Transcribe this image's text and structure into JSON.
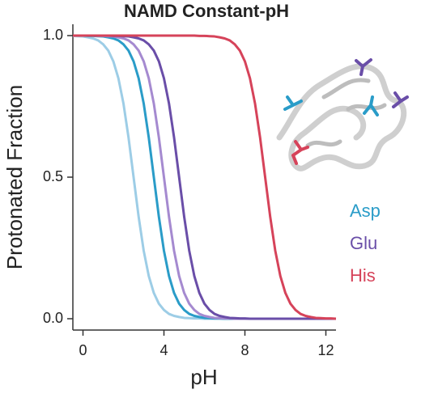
{
  "chart_data": {
    "type": "line",
    "title": "NAMD Constant-pH",
    "x_label": "pH",
    "y_label": "Protonated Fraction",
    "xlim": [
      -0.5,
      12.5
    ],
    "ylim": [
      -0.04,
      1.04
    ],
    "xticks": [
      0,
      4,
      8,
      12
    ],
    "yticks": [
      {
        "value": 0,
        "label": "0.0"
      },
      {
        "value": 0.5,
        "label": "0.5"
      },
      {
        "value": 1,
        "label": "1.0"
      }
    ],
    "x": [
      -0.5,
      -0.25,
      0,
      0.25,
      0.5,
      0.75,
      1,
      1.25,
      1.5,
      1.75,
      2,
      2.25,
      2.5,
      2.75,
      3,
      3.25,
      3.5,
      3.75,
      4,
      4.25,
      4.5,
      4.75,
      5,
      5.25,
      5.5,
      5.75,
      6,
      6.25,
      6.5,
      6.75,
      7,
      7.25,
      7.5,
      7.75,
      8,
      8.25,
      8.5,
      8.75,
      9,
      9.25,
      9.5,
      9.75,
      10,
      10.25,
      10.5,
      10.75,
      11,
      11.25,
      11.5,
      11.75,
      12,
      12.25,
      12.5
    ],
    "series": [
      {
        "color": "#9dcde6",
        "values": [
          0.999,
          0.998,
          0.997,
          0.994,
          0.99,
          0.983,
          0.969,
          0.947,
          0.909,
          0.849,
          0.76,
          0.64,
          0.5,
          0.36,
          0.24,
          0.151,
          0.091,
          0.053,
          0.031,
          0.017,
          0.01,
          0.006,
          0.003,
          0.002,
          0.001,
          0.001,
          0,
          0,
          0,
          0,
          0,
          0,
          0,
          0,
          0,
          0,
          0,
          0,
          0,
          0,
          0,
          0,
          0,
          0,
          0,
          0,
          0,
          0,
          0,
          0,
          0,
          0,
          0
        ]
      },
      {
        "color": "#2a9cc8",
        "values": [
          1,
          1,
          1,
          0.999,
          0.999,
          0.998,
          0.997,
          0.994,
          0.99,
          0.983,
          0.969,
          0.947,
          0.909,
          0.849,
          0.76,
          0.64,
          0.5,
          0.36,
          0.24,
          0.151,
          0.091,
          0.053,
          0.031,
          0.017,
          0.01,
          0.006,
          0.003,
          0.002,
          0.001,
          0.001,
          0,
          0,
          0,
          0,
          0,
          0,
          0,
          0,
          0,
          0,
          0,
          0,
          0,
          0,
          0,
          0,
          0,
          0,
          0,
          0,
          0,
          0,
          0
        ]
      },
      {
        "color": "#a58ad0",
        "values": [
          1,
          1,
          1,
          1,
          1,
          0.999,
          0.999,
          0.998,
          0.997,
          0.994,
          0.99,
          0.983,
          0.969,
          0.947,
          0.909,
          0.849,
          0.76,
          0.64,
          0.5,
          0.36,
          0.24,
          0.151,
          0.091,
          0.053,
          0.031,
          0.017,
          0.01,
          0.006,
          0.003,
          0.002,
          0.001,
          0.001,
          0,
          0,
          0,
          0,
          0,
          0,
          0,
          0,
          0,
          0,
          0,
          0,
          0,
          0,
          0,
          0,
          0,
          0,
          0,
          0,
          0
        ]
      },
      {
        "color": "#6a4ea8",
        "values": [
          1,
          1,
          1,
          1,
          1,
          1,
          1,
          1,
          0.999,
          0.999,
          0.998,
          0.997,
          0.994,
          0.99,
          0.983,
          0.969,
          0.947,
          0.909,
          0.849,
          0.76,
          0.64,
          0.5,
          0.36,
          0.24,
          0.151,
          0.091,
          0.053,
          0.031,
          0.017,
          0.01,
          0.006,
          0.003,
          0.002,
          0.001,
          0.001,
          0,
          0,
          0,
          0,
          0,
          0,
          0,
          0,
          0,
          0,
          0,
          0,
          0,
          0,
          0,
          0,
          0,
          0
        ]
      },
      {
        "color": "#d6435a",
        "values": [
          1,
          1,
          1,
          1,
          1,
          1,
          1,
          1,
          1,
          1,
          1,
          1,
          1,
          1,
          1,
          1,
          1,
          1,
          1,
          1,
          1,
          1,
          1,
          1,
          1,
          0.999,
          0.999,
          0.998,
          0.997,
          0.994,
          0.99,
          0.983,
          0.969,
          0.947,
          0.909,
          0.849,
          0.76,
          0.64,
          0.5,
          0.36,
          0.24,
          0.151,
          0.091,
          0.053,
          0.031,
          0.017,
          0.01,
          0.006,
          0.003,
          0.002,
          0.001,
          0.001,
          0
        ]
      }
    ],
    "legend": [
      {
        "text": "Asp",
        "color": "#2a9cc8"
      },
      {
        "text": "Glu",
        "color": "#6a4ea8"
      },
      {
        "text": "His",
        "color": "#d6435a"
      }
    ]
  }
}
